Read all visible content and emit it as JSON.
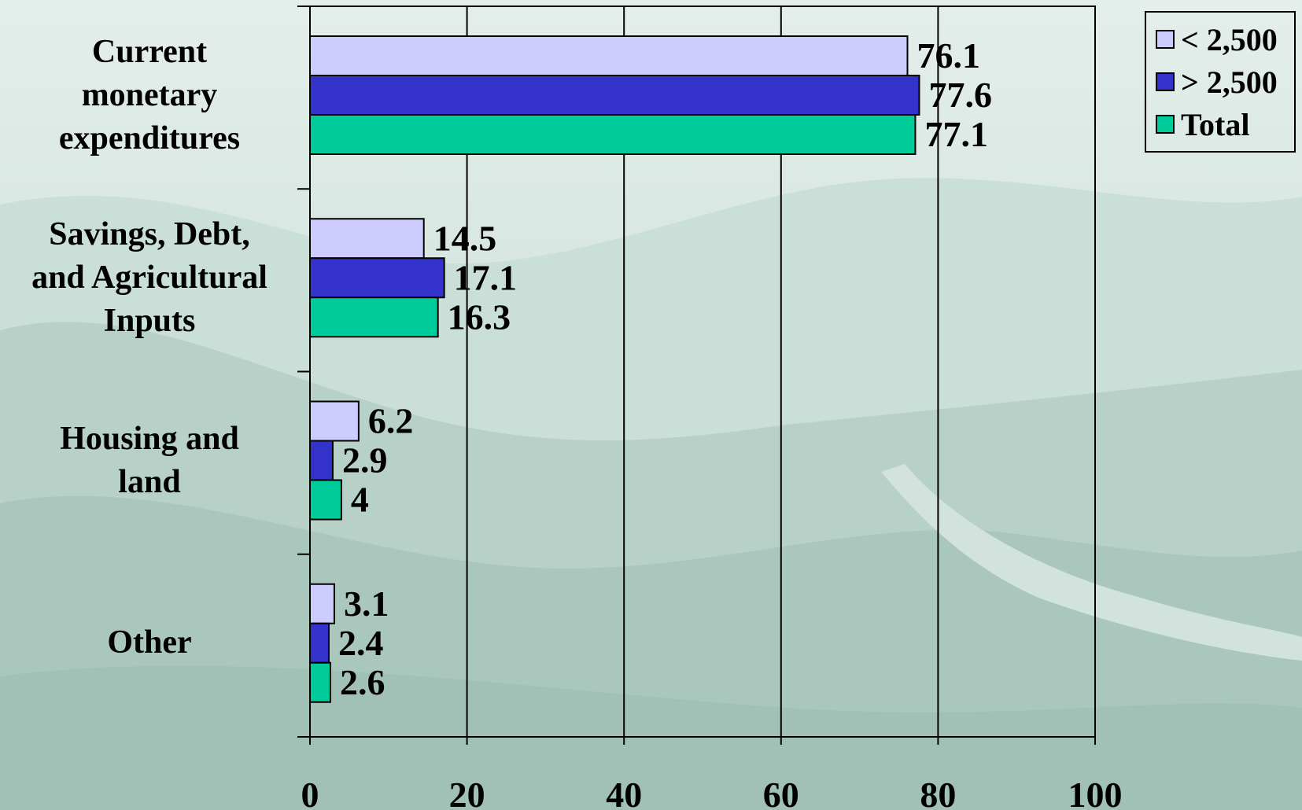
{
  "chart_data": {
    "type": "bar",
    "orientation": "horizontal",
    "categories": [
      "Current monetary expenditures",
      "Savings, Debt, and Agricultural Inputs",
      "Housing and land",
      "Other"
    ],
    "category_lines": [
      [
        "Current",
        "monetary",
        "expenditures"
      ],
      [
        "Savings, Debt,",
        "and Agricultural",
        "Inputs"
      ],
      [
        "Housing and",
        "land"
      ],
      [
        "Other"
      ]
    ],
    "series": [
      {
        "name": "< 2,500",
        "color": "#ccccff",
        "values": [
          76.1,
          14.5,
          6.2,
          3.1
        ],
        "labels": [
          "76.1",
          "14.5",
          "6.2",
          "3.1"
        ]
      },
      {
        "name": "> 2,500",
        "color": "#3333cc",
        "values": [
          77.6,
          17.1,
          2.9,
          2.4
        ],
        "labels": [
          "77.6",
          "17.1",
          "2.9",
          "2.4"
        ]
      },
      {
        "name": "Total",
        "color": "#00cc99",
        "values": [
          77.1,
          16.3,
          4,
          2.6
        ],
        "labels": [
          "77.1",
          "16.3",
          "4",
          "2.6"
        ]
      }
    ],
    "xlim": [
      0,
      100
    ],
    "xticks": [
      "0",
      "20",
      "40",
      "60",
      "80",
      "100"
    ],
    "grid": true,
    "legend_position": "top-right",
    "title": "",
    "xlabel": "",
    "ylabel": ""
  }
}
